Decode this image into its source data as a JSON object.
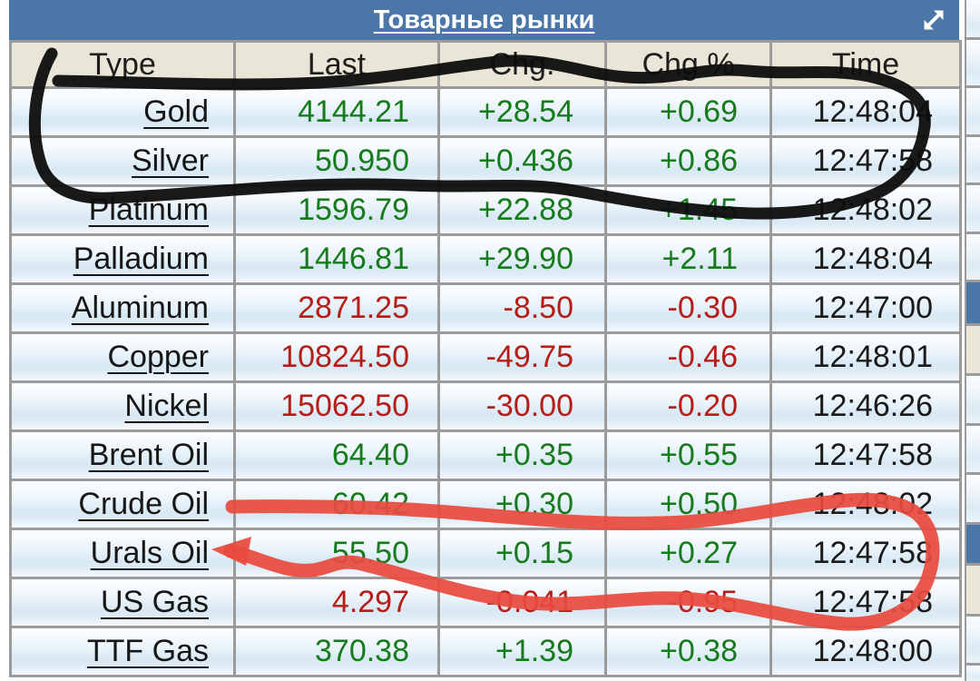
{
  "widget": {
    "title": "Товарные рынки",
    "columns": [
      "Type",
      "Last",
      "Chg.",
      "Chg %",
      "Time"
    ],
    "rows": [
      {
        "type": "Gold",
        "last": "4144.21",
        "chg": "+28.54",
        "chg_pct": "+0.69",
        "time": "12:48:04",
        "trend": "up"
      },
      {
        "type": "Silver",
        "last": "50.950",
        "chg": "+0.436",
        "chg_pct": "+0.86",
        "time": "12:47:58",
        "trend": "up"
      },
      {
        "type": "Platinum",
        "last": "1596.79",
        "chg": "+22.88",
        "chg_pct": "+1.45",
        "time": "12:48:02",
        "trend": "up"
      },
      {
        "type": "Palladium",
        "last": "1446.81",
        "chg": "+29.90",
        "chg_pct": "+2.11",
        "time": "12:48:04",
        "trend": "up"
      },
      {
        "type": "Aluminum",
        "last": "2871.25",
        "chg": "-8.50",
        "chg_pct": "-0.30",
        "time": "12:47:00",
        "trend": "down"
      },
      {
        "type": "Copper",
        "last": "10824.50",
        "chg": "-49.75",
        "chg_pct": "-0.46",
        "time": "12:48:01",
        "trend": "down"
      },
      {
        "type": "Nickel",
        "last": "15062.50",
        "chg": "-30.00",
        "chg_pct": "-0.20",
        "time": "12:46:26",
        "trend": "down"
      },
      {
        "type": "Brent Oil",
        "last": "64.40",
        "chg": "+0.35",
        "chg_pct": "+0.55",
        "time": "12:47:58",
        "trend": "up"
      },
      {
        "type": "Crude Oil",
        "last": "60.42",
        "chg": "+0.30",
        "chg_pct": "+0.50",
        "time": "12:48:02",
        "trend": "up"
      },
      {
        "type": "Urals Oil",
        "last": "55.50",
        "chg": "+0.15",
        "chg_pct": "+0.27",
        "time": "12:47:58",
        "trend": "up"
      },
      {
        "type": "US Gas",
        "last": "4.297",
        "chg": "-0.041",
        "chg_pct": "-0.95",
        "time": "12:47:58",
        "trend": "down"
      },
      {
        "type": "TTF Gas",
        "last": "370.38",
        "chg": "+1.39",
        "chg_pct": "+0.38",
        "time": "12:48:00",
        "trend": "up"
      }
    ],
    "colors": {
      "up": "#177a1d",
      "down": "#b71d18",
      "titlebar_bg": "#4a76a8",
      "column_header_bg": "#e9e5d7",
      "border": "#9b9b9b"
    }
  },
  "annotations": {
    "black_marker": "hand-drawn loop circling the Gold and Silver rows",
    "red_marker": "hand-drawn loop with left arrow circling the Crude Oil, Urals Oil and US Gas rows",
    "black_color": "#0d0d0d",
    "red_color": "#e84a3e"
  }
}
